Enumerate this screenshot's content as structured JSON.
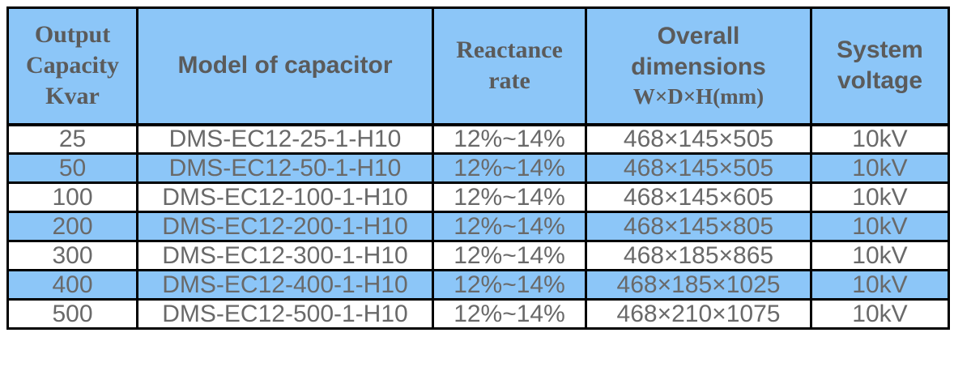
{
  "colors": {
    "accent-blue": "#8CC6F8",
    "border-black": "#000000",
    "header-text": "#5B5B5B",
    "cell-text": "#696969",
    "page-bg": "#FFFFFF",
    "row-white": "#FFFFFF"
  },
  "table": {
    "headers": [
      {
        "id": "output-capacity",
        "lines": [
          "Output",
          "Capacity",
          "Kvar"
        ]
      },
      {
        "id": "model",
        "lines": [
          "Model of capacitor"
        ]
      },
      {
        "id": "reactance-rate",
        "lines": [
          "Reactance",
          "rate"
        ]
      },
      {
        "id": "overall-dimensions",
        "lines": [
          "Overall",
          "dimensions"
        ],
        "sub": "W×D×H(mm)"
      },
      {
        "id": "system-voltage",
        "lines": [
          "System",
          "voltage"
        ]
      }
    ],
    "rows": [
      {
        "capacity": "25",
        "model": "DMS-EC12-25-1-H10",
        "reactance": "12%~14%",
        "dimensions": "468×145×505",
        "voltage": "10kV",
        "shaded": false
      },
      {
        "capacity": "50",
        "model": "DMS-EC12-50-1-H10",
        "reactance": "12%~14%",
        "dimensions": "468×145×505",
        "voltage": "10kV",
        "shaded": true
      },
      {
        "capacity": "100",
        "model": "DMS-EC12-100-1-H10",
        "reactance": "12%~14%",
        "dimensions": "468×145×605",
        "voltage": "10kV",
        "shaded": false
      },
      {
        "capacity": "200",
        "model": "DMS-EC12-200-1-H10",
        "reactance": "12%~14%",
        "dimensions": "468×145×805",
        "voltage": "10kV",
        "shaded": true
      },
      {
        "capacity": "300",
        "model": "DMS-EC12-300-1-H10",
        "reactance": "12%~14%",
        "dimensions": "468×185×865",
        "voltage": "10kV",
        "shaded": false
      },
      {
        "capacity": "400",
        "model": "DMS-EC12-400-1-H10",
        "reactance": "12%~14%",
        "dimensions": "468×185×1025",
        "voltage": "10kV",
        "shaded": true
      },
      {
        "capacity": "500",
        "model": "DMS-EC12-500-1-H10",
        "reactance": "12%~14%",
        "dimensions": "468×210×1075",
        "voltage": "10kV",
        "shaded": false
      }
    ]
  }
}
